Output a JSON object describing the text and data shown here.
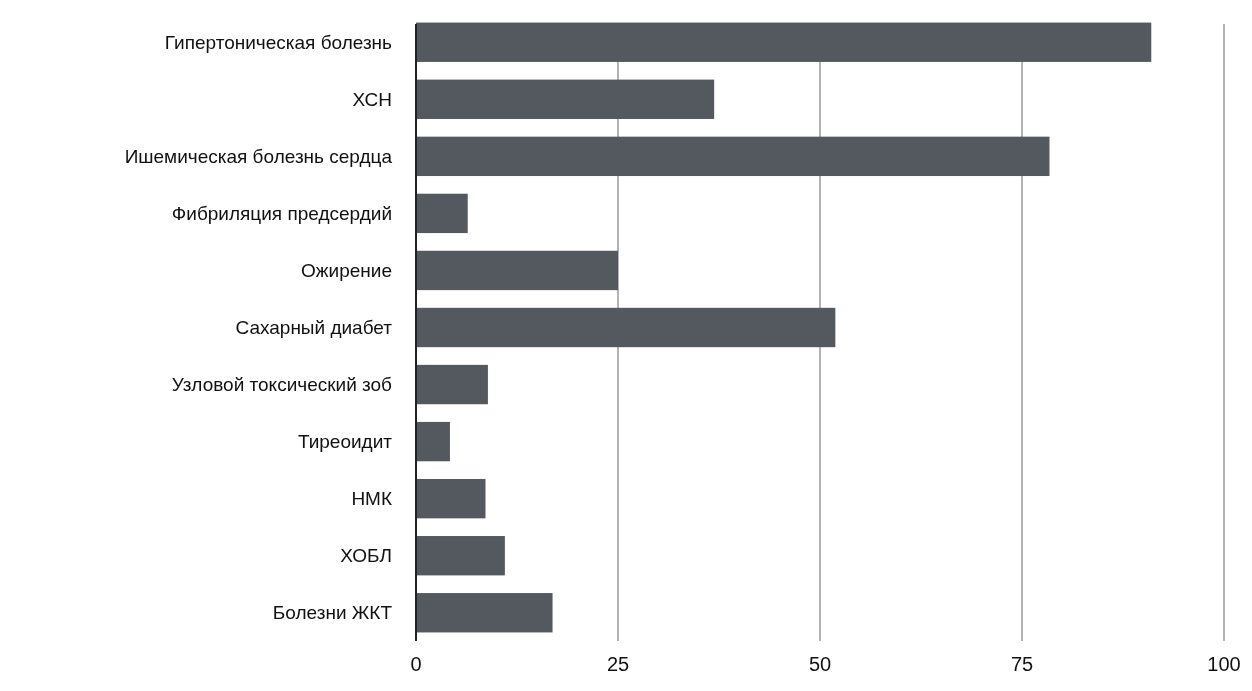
{
  "chart_data": {
    "type": "bar",
    "orientation": "horizontal",
    "categories": [
      "Гипертоническая болезнь",
      "ХСН",
      "Ишемическая болезнь сердца",
      "Фибриляция предсердий",
      "Ожирение",
      "Сахарный диабет",
      "Узловой токсический зоб",
      "Тиреоидит",
      "НМК",
      "ХОБЛ",
      "Болезни ЖКТ"
    ],
    "values": [
      91.0,
      36.9,
      78.4,
      6.4,
      25.0,
      51.9,
      8.9,
      4.2,
      8.6,
      11.0,
      16.9
    ],
    "color": "#54585f",
    "xlim": [
      0,
      100
    ],
    "xticks": [
      0,
      25,
      50,
      75,
      100
    ],
    "grid": "x"
  }
}
